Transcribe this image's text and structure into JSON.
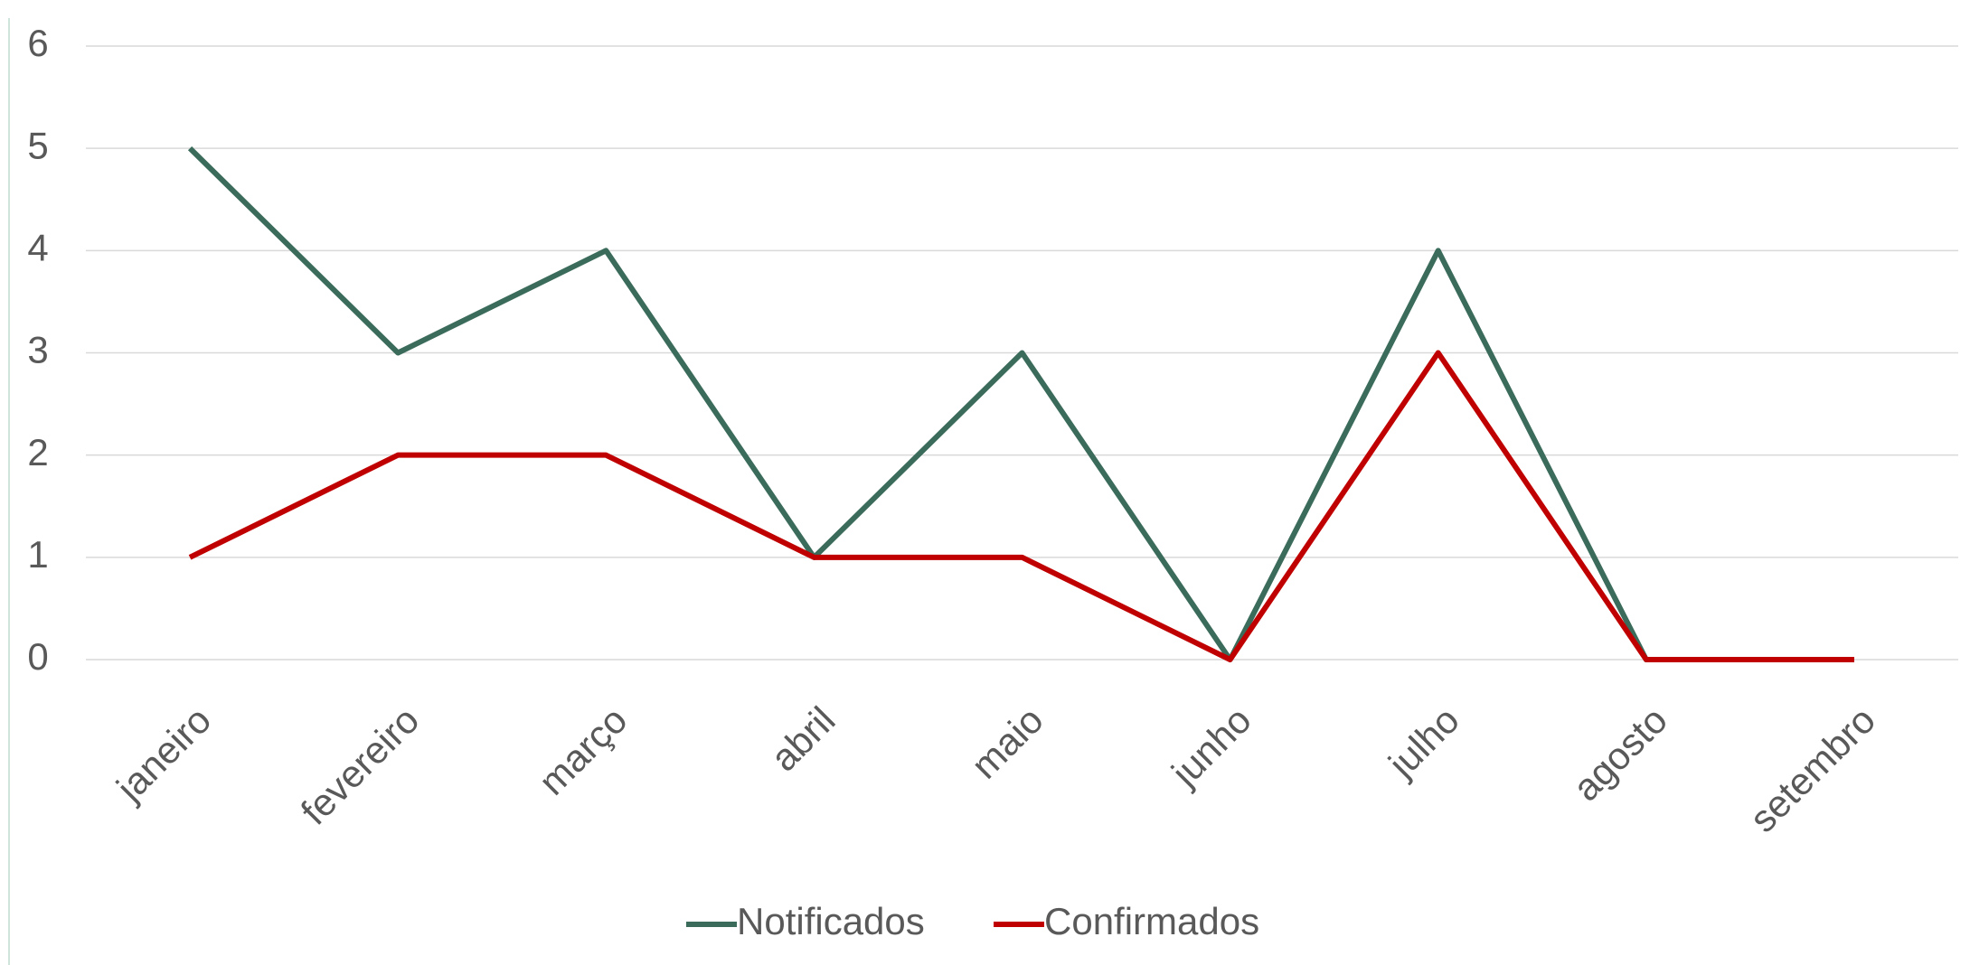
{
  "chart_data": {
    "type": "line",
    "categories": [
      "janeiro",
      "fevereiro",
      "março",
      "abril",
      "maio",
      "junho",
      "julho",
      "agosto",
      "setembro"
    ],
    "series": [
      {
        "name": "Notificados",
        "color": "#3b6b5a",
        "values": [
          5,
          3,
          4,
          1,
          3,
          0,
          4,
          0,
          0
        ]
      },
      {
        "name": "Confirmados",
        "color": "#c00000",
        "values": [
          1,
          2,
          2,
          1,
          1,
          0,
          3,
          0,
          0
        ]
      }
    ],
    "ylim": [
      0,
      6
    ],
    "yticks": [
      0,
      1,
      2,
      3,
      4,
      5,
      6
    ],
    "grid": true,
    "legend": "bottom"
  }
}
